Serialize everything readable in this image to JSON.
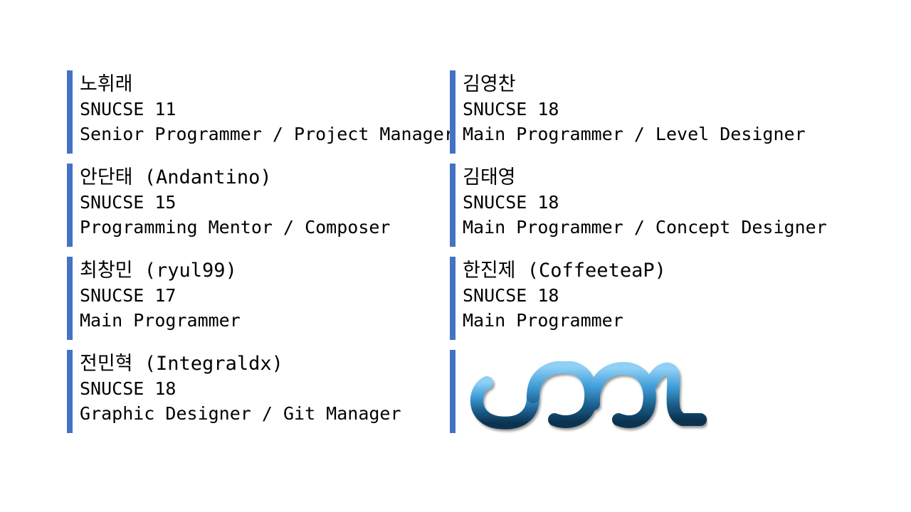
{
  "members": [
    {
      "name": "노휘래",
      "affiliation": "SNUCSE 11",
      "role": "Senior Programmer / Project Manager"
    },
    {
      "name": "김영찬",
      "affiliation": "SNUCSE 18",
      "role": "Main Programmer / Level Designer"
    },
    {
      "name": "안단태 (Andantino)",
      "affiliation": "SNUCSE 15",
      "role": "Programming Mentor / Composer"
    },
    {
      "name": "김태영",
      "affiliation": "SNUCSE 18",
      "role": "Main Programmer / Concept Designer"
    },
    {
      "name": "최창민 (ryul99)",
      "affiliation": "SNUCSE 17",
      "role": "Main Programmer"
    },
    {
      "name": "한진제 (CoffeeteaP)",
      "affiliation": "SNUCSE 18",
      "role": "Main Programmer"
    },
    {
      "name": "전민혁 (Integraldx)",
      "affiliation": "SNUCSE 18",
      "role": "Graphic Designer / Git Manager"
    }
  ],
  "colors": {
    "accent_bar": "#4472c4",
    "logo_light": "#5bb5ea",
    "logo_dark": "#0b3350"
  },
  "logo": {
    "icon": "team-logo-icon"
  }
}
